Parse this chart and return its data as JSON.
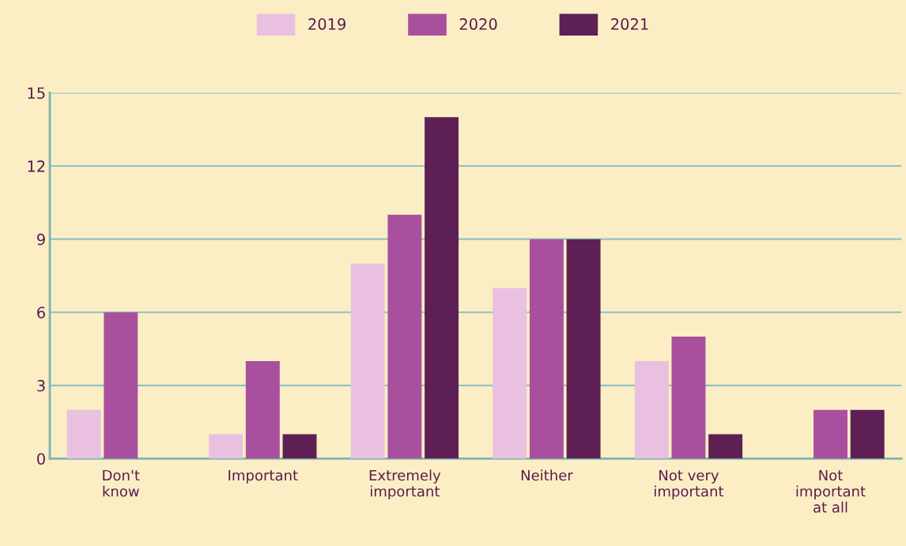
{
  "chart_data": {
    "type": "bar",
    "categories": [
      "Don't\nknow",
      "Important",
      "Extremely\nimportant",
      "Neither",
      "Not very\nimportant",
      "Not\nimportant\nat all"
    ],
    "series": [
      {
        "name": "2019",
        "color": "#eac0e0",
        "values": [
          2,
          1,
          8,
          7,
          4,
          0
        ]
      },
      {
        "name": "2020",
        "color": "#a8509e",
        "values": [
          6,
          4,
          10,
          9,
          5,
          2
        ]
      },
      {
        "name": "2021",
        "color": "#5e1f55",
        "values": [
          0,
          1,
          14,
          9,
          1,
          2
        ]
      }
    ],
    "ylim": [
      0,
      15
    ],
    "yticks": [
      0,
      3,
      6,
      9,
      12,
      15
    ],
    "grid": "y",
    "legend": "top"
  }
}
